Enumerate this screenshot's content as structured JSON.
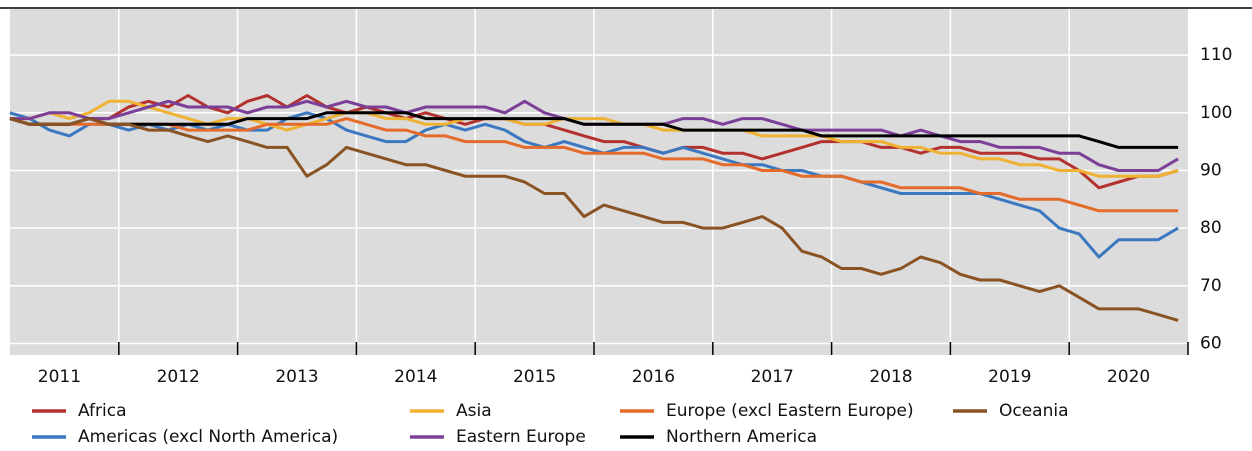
{
  "chart_data": {
    "type": "line",
    "categories": [
      "2011",
      "2012",
      "2013",
      "2014",
      "2015",
      "2016",
      "2017",
      "2018",
      "2019",
      "2020"
    ],
    "ylim": [
      58,
      118
    ],
    "yticks": [
      60,
      70,
      80,
      90,
      100,
      110
    ],
    "grid": true,
    "legend": "bottom",
    "series": [
      {
        "name": "Africa",
        "color": "#b3312f",
        "values": [
          [
            99,
            98,
            98,
            98,
            99,
            99
          ],
          [
            101,
            102,
            101,
            103,
            101,
            100
          ],
          [
            102,
            103,
            101,
            103,
            101,
            100
          ],
          [
            101,
            100,
            99,
            100,
            99,
            98
          ],
          [
            99,
            99,
            98,
            98,
            97,
            96
          ],
          [
            95,
            95,
            94,
            93,
            94,
            94
          ],
          [
            93,
            93,
            92,
            93,
            94,
            95
          ],
          [
            95,
            95,
            94,
            94,
            93,
            94
          ],
          [
            94,
            93,
            93,
            93,
            92,
            92
          ],
          [
            90,
            87,
            88,
            89,
            89,
            90
          ]
        ]
      },
      {
        "name": "Americas (excl North America)",
        "color": "#3b78c0",
        "values": [
          [
            100,
            99,
            97,
            96,
            98,
            98
          ],
          [
            97,
            98,
            97,
            98,
            97,
            98
          ],
          [
            97,
            97,
            99,
            100,
            99,
            97
          ],
          [
            96,
            95,
            95,
            97,
            98,
            97
          ],
          [
            98,
            97,
            95,
            94,
            95,
            94
          ],
          [
            93,
            94,
            94,
            93,
            94,
            93
          ],
          [
            92,
            91,
            91,
            90,
            90,
            89
          ],
          [
            89,
            88,
            87,
            86,
            86,
            86
          ],
          [
            86,
            86,
            85,
            84,
            83,
            80
          ],
          [
            79,
            75,
            78,
            78,
            78,
            80
          ]
        ]
      },
      {
        "name": "Asia",
        "color": "#efb233",
        "values": [
          [
            99,
            99,
            100,
            99,
            100,
            102
          ],
          [
            102,
            101,
            100,
            99,
            98,
            99
          ],
          [
            99,
            98,
            97,
            98,
            99,
            100
          ],
          [
            100,
            99,
            99,
            98,
            98,
            99
          ],
          [
            99,
            99,
            98,
            98,
            99,
            99
          ],
          [
            99,
            98,
            98,
            97,
            97,
            97
          ],
          [
            97,
            97,
            96,
            96,
            96,
            96
          ],
          [
            95,
            95,
            95,
            94,
            94,
            93
          ],
          [
            93,
            92,
            92,
            91,
            91,
            90
          ],
          [
            90,
            89,
            89,
            89,
            89,
            90
          ]
        ]
      },
      {
        "name": "Eastern Europe",
        "color": "#7b3f98",
        "values": [
          [
            99,
            99,
            100,
            100,
            99,
            99
          ],
          [
            100,
            101,
            102,
            101,
            101,
            101
          ],
          [
            100,
            101,
            101,
            102,
            101,
            102
          ],
          [
            101,
            101,
            100,
            101,
            101,
            101
          ],
          [
            101,
            100,
            102,
            100,
            99,
            98
          ],
          [
            98,
            98,
            98,
            98,
            99,
            99
          ],
          [
            98,
            99,
            99,
            98,
            97,
            97
          ],
          [
            97,
            97,
            97,
            96,
            97,
            96
          ],
          [
            95,
            95,
            94,
            94,
            94,
            93
          ],
          [
            93,
            91,
            90,
            90,
            90,
            92
          ]
        ]
      },
      {
        "name": "Europe (excl Eastern Europe)",
        "color": "#e56b2b",
        "values": [
          [
            99,
            98,
            98,
            98,
            98,
            98
          ],
          [
            98,
            98,
            98,
            97,
            97,
            97
          ],
          [
            97,
            98,
            98,
            98,
            98,
            99
          ],
          [
            98,
            97,
            97,
            96,
            96,
            95
          ],
          [
            95,
            95,
            94,
            94,
            94,
            93
          ],
          [
            93,
            93,
            93,
            92,
            92,
            92
          ],
          [
            91,
            91,
            90,
            90,
            89,
            89
          ],
          [
            89,
            88,
            88,
            87,
            87,
            87
          ],
          [
            87,
            86,
            86,
            85,
            85,
            85
          ],
          [
            84,
            83,
            83,
            83,
            83,
            83
          ]
        ]
      },
      {
        "name": "Northern America",
        "color": "#000000",
        "values": [
          [
            99,
            98,
            98,
            98,
            99,
            98
          ],
          [
            98,
            98,
            98,
            98,
            98,
            98
          ],
          [
            99,
            99,
            99,
            99,
            100,
            100
          ],
          [
            100,
            100,
            100,
            99,
            99,
            99
          ],
          [
            99,
            99,
            99,
            99,
            99,
            98
          ],
          [
            98,
            98,
            98,
            98,
            97,
            97
          ],
          [
            97,
            97,
            97,
            97,
            97,
            96
          ],
          [
            96,
            96,
            96,
            96,
            96,
            96
          ],
          [
            96,
            96,
            96,
            96,
            96,
            96
          ],
          [
            96,
            95,
            94,
            94,
            94,
            94
          ]
        ]
      },
      {
        "name": "Oceania",
        "color": "#8a5324",
        "values": [
          [
            99,
            98,
            98,
            98,
            99,
            98
          ],
          [
            98,
            97,
            97,
            96,
            95,
            96
          ],
          [
            95,
            94,
            94,
            89,
            91,
            94
          ],
          [
            93,
            92,
            91,
            91,
            90,
            89
          ],
          [
            89,
            89,
            88,
            86,
            86,
            82
          ],
          [
            84,
            83,
            82,
            81,
            81,
            80
          ],
          [
            80,
            81,
            82,
            80,
            76,
            75
          ],
          [
            73,
            73,
            72,
            73,
            75,
            74
          ],
          [
            72,
            71,
            71,
            70,
            69,
            70
          ],
          [
            68,
            66,
            66,
            66,
            65,
            64
          ]
        ]
      }
    ]
  }
}
